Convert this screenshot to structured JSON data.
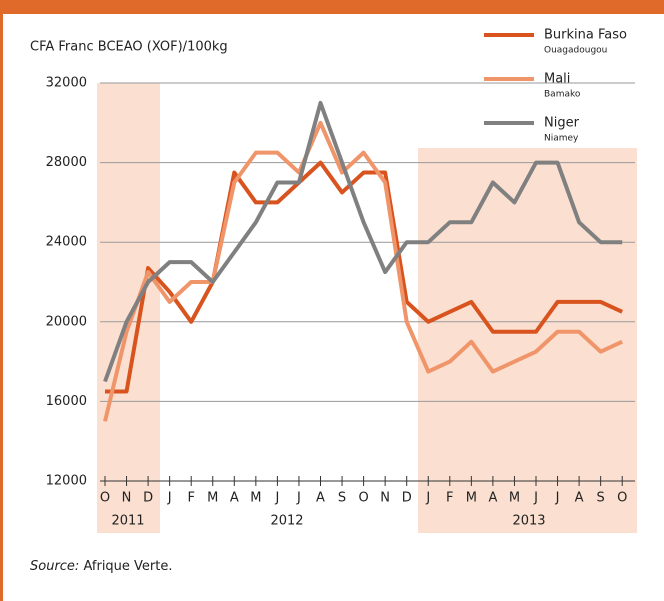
{
  "chart_data": {
    "type": "line",
    "subtitle": "CFA Franc BCEAO (XOF)/100kg",
    "categories": [
      "O",
      "N",
      "D",
      "J",
      "F",
      "M",
      "A",
      "M",
      "J",
      "J",
      "A",
      "S",
      "O",
      "N",
      "D",
      "J",
      "F",
      "M",
      "A",
      "M",
      "J",
      "J",
      "A",
      "S",
      "O"
    ],
    "x_groups": [
      "2011",
      "2012",
      "2013"
    ],
    "series": [
      {
        "name": "Burkina Faso",
        "city": "Ouagadougou",
        "color": "#d9531e",
        "values": [
          16500,
          16500,
          22700,
          21500,
          20000,
          22000,
          27500,
          26000,
          26000,
          27000,
          28000,
          26500,
          27500,
          27500,
          21000,
          20000,
          20500,
          21000,
          19500,
          19500,
          19500,
          21000,
          21000,
          21000,
          20500
        ]
      },
      {
        "name": "Mali",
        "city": "Bamako",
        "color": "#f0956a",
        "values": [
          15000,
          19500,
          22500,
          21000,
          22000,
          22000,
          27000,
          28500,
          28500,
          27500,
          30000,
          27500,
          28500,
          27000,
          20000,
          17500,
          18000,
          19000,
          17500,
          18000,
          18500,
          19500,
          19500,
          18500,
          19000
        ]
      },
      {
        "name": "Niger",
        "city": "Niamey",
        "color": "#808080",
        "values": [
          17000,
          20000,
          22000,
          23000,
          23000,
          22000,
          23500,
          25000,
          27000,
          27000,
          31000,
          28000,
          25000,
          22500,
          24000,
          24000,
          25000,
          25000,
          27000,
          26000,
          28000,
          28000,
          25000,
          24000,
          24000
        ]
      }
    ],
    "ylim": [
      12000,
      32000
    ],
    "yticks": [
      12000,
      16000,
      20000,
      24000,
      28000,
      32000
    ],
    "grid": true,
    "source_label": "Source:",
    "source": "Afrique Verte."
  }
}
